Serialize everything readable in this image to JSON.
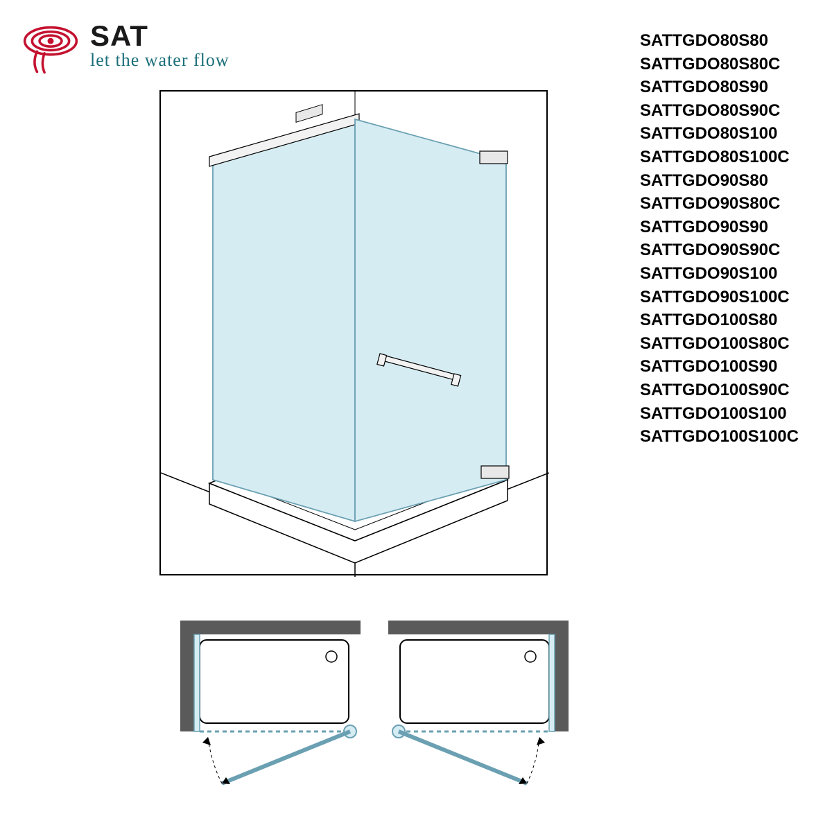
{
  "brand": {
    "name": "SAT",
    "tagline": "let the water flow",
    "swirl_color": "#c41230",
    "tagline_color": "#1b6f7a"
  },
  "product_codes": [
    "SATTGDO80S80",
    "SATTGDO80S80C",
    "SATTGDO80S90",
    "SATTGDO80S90C",
    "SATTGDO80S100",
    "SATTGDO80S100C",
    "SATTGDO90S80",
    "SATTGDO90S80C",
    "SATTGDO90S90",
    "SATTGDO90S90C",
    "SATTGDO90S100",
    "SATTGDO90S100C",
    "SATTGDO100S80",
    "SATTGDO100S80C",
    "SATTGDO100S90",
    "SATTGDO100S90C",
    "SATTGDO100S100",
    "SATTGDO100S100C"
  ],
  "diagram": {
    "glass_fill": "#d6ecf3",
    "glass_stroke": "#6aa0b2",
    "line_color": "#000000",
    "tray_fill": "#ffffff",
    "wall_fill": "#5a5a5a",
    "hinge_fill": "#e8e8e8"
  }
}
